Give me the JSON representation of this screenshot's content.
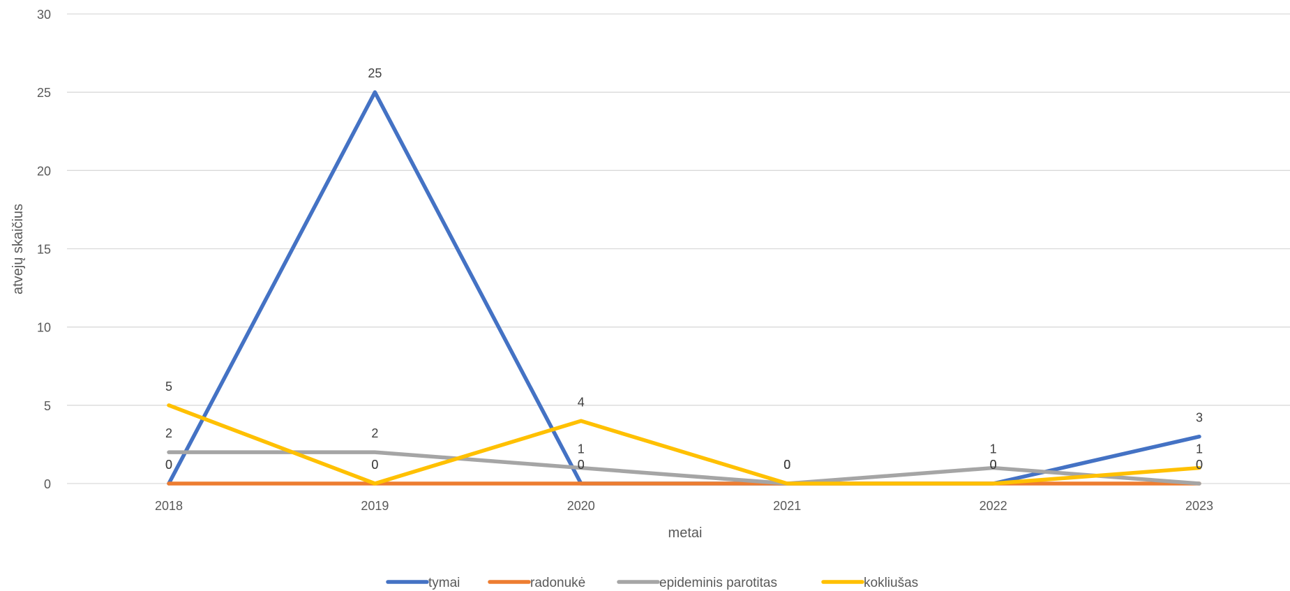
{
  "chart_data": {
    "type": "line",
    "title": "",
    "xlabel": "metai",
    "ylabel": "atvejų skaičius",
    "categories": [
      "2018",
      "2019",
      "2020",
      "2021",
      "2022",
      "2023"
    ],
    "ylim": [
      0,
      30
    ],
    "yticks": [
      0,
      5,
      10,
      15,
      20,
      25,
      30
    ],
    "grid": true,
    "legend_position": "bottom",
    "series": [
      {
        "name": "tymai",
        "color": "#4472C4",
        "values": [
          0,
          25,
          0,
          0,
          0,
          3
        ]
      },
      {
        "name": "radonukė",
        "color": "#ED7D31",
        "values": [
          0,
          0,
          0,
          0,
          0,
          0
        ]
      },
      {
        "name": "epideminis parotitas",
        "color": "#A5A5A5",
        "values": [
          2,
          2,
          1,
          0,
          1,
          0
        ]
      },
      {
        "name": "kokliušas",
        "color": "#FFC000",
        "values": [
          5,
          0,
          4,
          0,
          0,
          1
        ]
      }
    ]
  }
}
